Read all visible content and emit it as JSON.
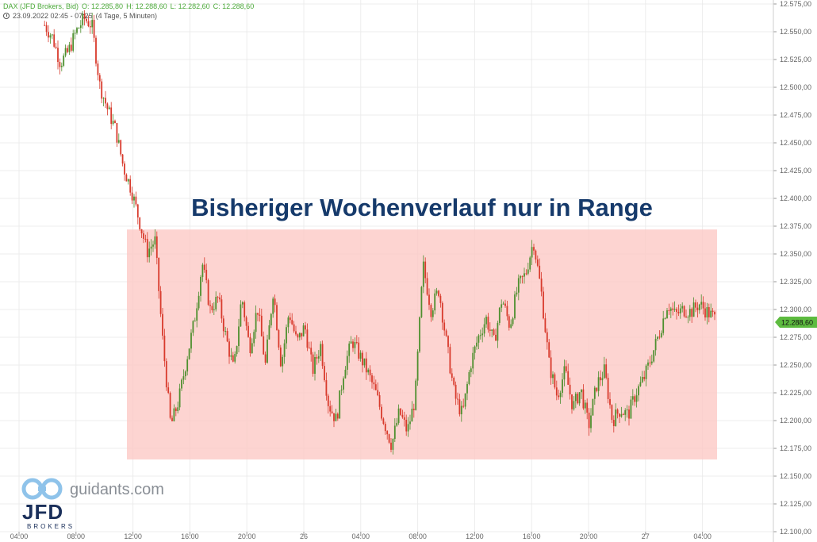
{
  "header": {
    "symbol_line": "DAX (JFD Brokers, Bid)",
    "ohlc": [
      "O: 12.285,80",
      "H: 12.288,60",
      "L: 12.282,60",
      "C: 12.288,60"
    ],
    "timeframe": "23.09.2022 02:45 - 07:25",
    "period": "(4 Tage, 5 Minuten)"
  },
  "annotation": {
    "text": "Bisheriger Wochenverlauf nur in Range"
  },
  "watermark": {
    "guidants": "guidants.com",
    "jfd": "JFD",
    "jfd_sub": "BROKERS"
  },
  "colors": {
    "up_candle": "#4e8f2f",
    "down_candle": "#d83a2c",
    "range_box": "#fcc9c5",
    "last_price_badge": "#5dbb3f",
    "title_text": "#163a6b"
  },
  "chart_data": {
    "type": "candlestick",
    "title": "Bisheriger Wochenverlauf nur in Range",
    "instrument": "DAX",
    "y_axis": {
      "min": 12100,
      "max": 12575,
      "step": 25,
      "side": "right",
      "tick_labels": [
        "12.575,00",
        "12.550,00",
        "12.525,00",
        "12.500,00",
        "12.475,00",
        "12.450,00",
        "12.425,00",
        "12.400,00",
        "12.375,00",
        "12.350,00",
        "12.325,00",
        "12.300,00",
        "12.275,00",
        "12.250,00",
        "12.225,00",
        "12.200,00",
        "12.175,00",
        "12.150,00",
        "12.125,00",
        "12.100,00"
      ]
    },
    "x_axis": {
      "tick_labels": [
        "04:00",
        "08:00",
        "12:00",
        "16:00",
        "20:00",
        "26",
        "04:00",
        "08:00",
        "12:00",
        "16:00",
        "20:00",
        "27",
        "04:00"
      ]
    },
    "grid": true,
    "last_price": {
      "value": 12288.6,
      "label": "12.288,60"
    },
    "range": {
      "low": 12165,
      "high": 12372
    },
    "path_points": [
      {
        "t": 0,
        "price": 12556
      },
      {
        "t": 1,
        "price": 12545
      },
      {
        "t": 2,
        "price": 12522
      },
      {
        "t": 3,
        "price": 12532
      },
      {
        "t": 4,
        "price": 12550
      },
      {
        "t": 5,
        "price": 12562
      },
      {
        "t": 6,
        "price": 12556
      },
      {
        "t": 7,
        "price": 12502
      },
      {
        "t": 8,
        "price": 12480
      },
      {
        "t": 9,
        "price": 12462
      },
      {
        "t": 10,
        "price": 12428
      },
      {
        "t": 11,
        "price": 12408
      },
      {
        "t": 12,
        "price": 12380
      },
      {
        "t": 13,
        "price": 12352
      },
      {
        "t": 14,
        "price": 12362
      },
      {
        "t": 15,
        "price": 12270
      },
      {
        "t": 16,
        "price": 12195
      },
      {
        "t": 17,
        "price": 12218
      },
      {
        "t": 18,
        "price": 12255
      },
      {
        "t": 19,
        "price": 12290
      },
      {
        "t": 20,
        "price": 12342
      },
      {
        "t": 21,
        "price": 12300
      },
      {
        "t": 22,
        "price": 12310
      },
      {
        "t": 23,
        "price": 12275
      },
      {
        "t": 24,
        "price": 12245
      },
      {
        "t": 25,
        "price": 12312
      },
      {
        "t": 26,
        "price": 12265
      },
      {
        "t": 27,
        "price": 12302
      },
      {
        "t": 28,
        "price": 12250
      },
      {
        "t": 29,
        "price": 12318
      },
      {
        "t": 30,
        "price": 12250
      },
      {
        "t": 31,
        "price": 12298
      },
      {
        "t": 32,
        "price": 12270
      },
      {
        "t": 33,
        "price": 12285
      },
      {
        "t": 34,
        "price": 12245
      },
      {
        "t": 35,
        "price": 12268
      },
      {
        "t": 36,
        "price": 12215
      },
      {
        "t": 37,
        "price": 12200
      },
      {
        "t": 38,
        "price": 12248
      },
      {
        "t": 39,
        "price": 12272
      },
      {
        "t": 40,
        "price": 12258
      },
      {
        "t": 41,
        "price": 12243
      },
      {
        "t": 42,
        "price": 12225
      },
      {
        "t": 43,
        "price": 12200
      },
      {
        "t": 44,
        "price": 12178
      },
      {
        "t": 45,
        "price": 12208
      },
      {
        "t": 46,
        "price": 12190
      },
      {
        "t": 47,
        "price": 12220
      },
      {
        "t": 48,
        "price": 12340
      },
      {
        "t": 49,
        "price": 12300
      },
      {
        "t": 50,
        "price": 12318
      },
      {
        "t": 51,
        "price": 12268
      },
      {
        "t": 52,
        "price": 12222
      },
      {
        "t": 53,
        "price": 12205
      },
      {
        "t": 54,
        "price": 12250
      },
      {
        "t": 55,
        "price": 12275
      },
      {
        "t": 56,
        "price": 12292
      },
      {
        "t": 57,
        "price": 12270
      },
      {
        "t": 58,
        "price": 12310
      },
      {
        "t": 59,
        "price": 12285
      },
      {
        "t": 60,
        "price": 12320
      },
      {
        "t": 61,
        "price": 12332
      },
      {
        "t": 62,
        "price": 12362
      },
      {
        "t": 63,
        "price": 12315
      },
      {
        "t": 64,
        "price": 12250
      },
      {
        "t": 65,
        "price": 12222
      },
      {
        "t": 66,
        "price": 12245
      },
      {
        "t": 67,
        "price": 12212
      },
      {
        "t": 68,
        "price": 12228
      },
      {
        "t": 69,
        "price": 12195
      },
      {
        "t": 70,
        "price": 12232
      },
      {
        "t": 71,
        "price": 12245
      },
      {
        "t": 72,
        "price": 12200
      },
      {
        "t": 73,
        "price": 12210
      },
      {
        "t": 74,
        "price": 12205
      },
      {
        "t": 75,
        "price": 12225
      },
      {
        "t": 76,
        "price": 12238
      },
      {
        "t": 77,
        "price": 12258
      },
      {
        "t": 78,
        "price": 12280
      },
      {
        "t": 79,
        "price": 12305
      },
      {
        "t": 80,
        "price": 12295
      },
      {
        "t": 81,
        "price": 12300
      },
      {
        "t": 82,
        "price": 12298
      },
      {
        "t": 83,
        "price": 12305
      },
      {
        "t": 84,
        "price": 12298
      },
      {
        "t": 85,
        "price": 12292
      }
    ]
  }
}
